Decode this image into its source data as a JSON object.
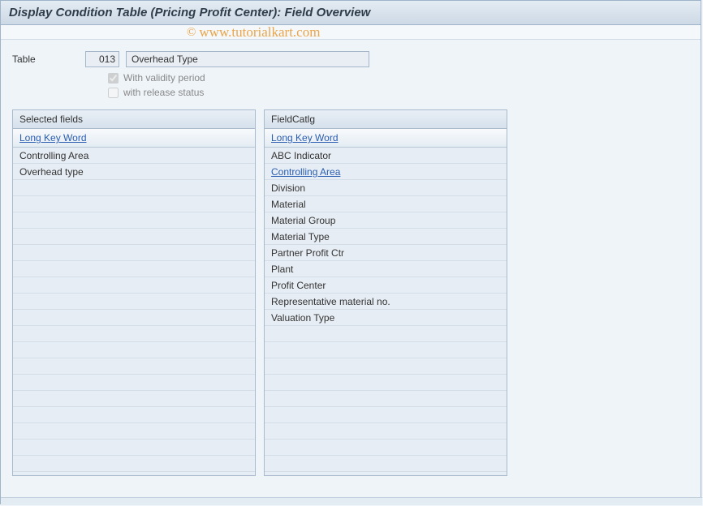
{
  "window": {
    "title": "Display Condition Table (Pricing Profit Center): Field Overview"
  },
  "form": {
    "table_label": "Table",
    "table_number": "013",
    "table_name": "Overhead Type",
    "validity_label": "With validity period",
    "validity_checked": true,
    "release_label": "with release status",
    "release_checked": false
  },
  "left_panel": {
    "title": "Selected fields",
    "column_header": "Long Key Word",
    "rows": [
      {
        "text": "Controlling Area",
        "link": false
      },
      {
        "text": "Overhead type",
        "link": false
      }
    ],
    "total_visible_rows": 20
  },
  "right_panel": {
    "title": "FieldCatlg",
    "column_header": "Long Key Word",
    "rows": [
      {
        "text": "ABC Indicator",
        "link": false
      },
      {
        "text": "Controlling Area",
        "link": true
      },
      {
        "text": "Division",
        "link": false
      },
      {
        "text": "Material",
        "link": false
      },
      {
        "text": "Material Group",
        "link": false
      },
      {
        "text": "Material Type",
        "link": false
      },
      {
        "text": "Partner Profit Ctr",
        "link": false
      },
      {
        "text": "Plant",
        "link": false
      },
      {
        "text": "Profit Center",
        "link": false
      },
      {
        "text": "Representative material no.",
        "link": false
      },
      {
        "text": "Valuation Type",
        "link": false
      }
    ],
    "total_visible_rows": 20
  },
  "watermark": {
    "text": "www.tutorialkart.com"
  },
  "colors": {
    "title_bg_top": "#e4ecf3",
    "title_bg_bot": "#cdd9e6",
    "border": "#9fb4c9",
    "panel_border": "#a8bacb",
    "panel_bg": "#e9eff6",
    "body_bg": "#eff4f9",
    "link": "#2a5db0",
    "watermark": "#e9a54a",
    "input_bg": "#e9eef4",
    "disabled_text": "#888888"
  }
}
